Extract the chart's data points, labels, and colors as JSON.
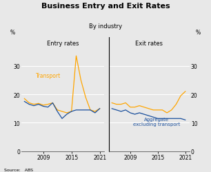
{
  "title": "Business Entry and Exit Rates",
  "subtitle": "By industry",
  "source": "Source:   ABS",
  "entry_transport": {
    "years": [
      2005,
      2006,
      2007,
      2008,
      2009,
      2010,
      2011,
      2012,
      2013,
      2014,
      2015,
      2016,
      2017,
      2018,
      2019,
      2020,
      2021
    ],
    "values": [
      18.5,
      17.0,
      16.5,
      16.8,
      16.2,
      16.5,
      17.0,
      14.5,
      14.0,
      13.5,
      14.0,
      33.5,
      25.0,
      19.0,
      14.5,
      14.0,
      15.0
    ]
  },
  "entry_aggregate": {
    "years": [
      2005,
      2006,
      2007,
      2008,
      2009,
      2010,
      2011,
      2012,
      2013,
      2014,
      2015,
      2016,
      2017,
      2018,
      2019,
      2020,
      2021
    ],
    "values": [
      17.5,
      16.5,
      16.0,
      16.5,
      15.8,
      15.5,
      17.0,
      14.0,
      11.5,
      13.0,
      14.0,
      14.5,
      14.5,
      14.5,
      14.5,
      13.5,
      15.0
    ]
  },
  "exit_transport": {
    "years": [
      2005,
      2006,
      2007,
      2008,
      2009,
      2010,
      2011,
      2012,
      2013,
      2014,
      2015,
      2016,
      2017,
      2018,
      2019,
      2020,
      2021
    ],
    "values": [
      17.0,
      16.5,
      16.5,
      17.0,
      15.5,
      15.5,
      16.0,
      15.5,
      15.0,
      14.5,
      14.5,
      14.5,
      13.5,
      14.5,
      16.5,
      19.5,
      21.0
    ]
  },
  "exit_aggregate": {
    "years": [
      2005,
      2006,
      2007,
      2008,
      2009,
      2010,
      2011,
      2012,
      2013,
      2014,
      2015,
      2016,
      2017,
      2018,
      2019,
      2020,
      2021
    ],
    "values": [
      15.0,
      14.5,
      14.0,
      14.5,
      13.5,
      13.0,
      13.5,
      13.0,
      12.5,
      12.0,
      11.5,
      11.5,
      11.5,
      11.5,
      11.5,
      11.5,
      11.0
    ]
  },
  "transport_color": "#FFA500",
  "aggregate_color": "#1a4f9c",
  "ylim": [
    0,
    40
  ],
  "yticks": [
    0,
    10,
    20,
    30
  ],
  "panel_labels": [
    "Entry rates",
    "Exit rates"
  ],
  "transport_label": "Transport",
  "aggregate_label": "Aggregate\nexcluding transport",
  "xticks": [
    2009,
    2015,
    2021
  ],
  "xlim": [
    2004.3,
    2022.0
  ],
  "background_color": "#e8e8e8",
  "grid_color": "#ffffff",
  "linewidth": 0.9
}
